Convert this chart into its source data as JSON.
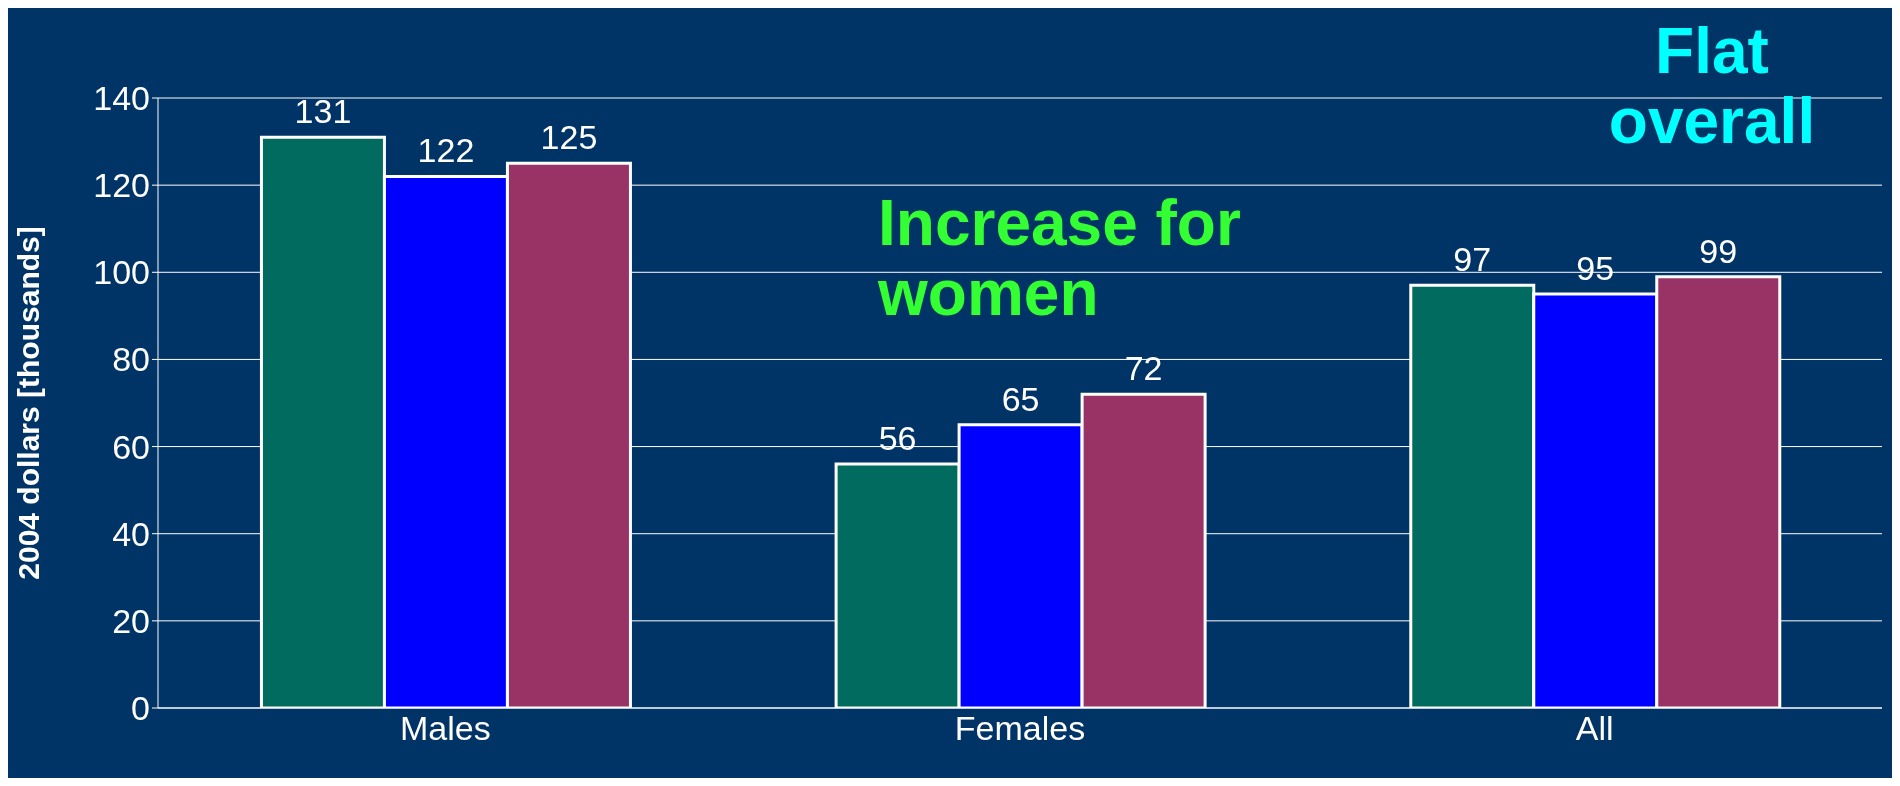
{
  "chart_data": {
    "type": "bar",
    "ylabel": "2004 dollars [thousands]",
    "categories": [
      "Males",
      "Females",
      "All"
    ],
    "series": [
      {
        "color": "#006b5e",
        "values": [
          131,
          56,
          97
        ]
      },
      {
        "color": "#0000ff",
        "values": [
          122,
          65,
          95
        ]
      },
      {
        "color": "#993366",
        "values": [
          125,
          72,
          99
        ]
      }
    ],
    "ylim": [
      0,
      140
    ],
    "yticks": [
      0,
      20,
      40,
      60,
      80,
      100,
      120,
      140
    ],
    "grid": "y",
    "data_labels": true,
    "annotations": [
      "Increase for women",
      "Flat overall"
    ]
  }
}
